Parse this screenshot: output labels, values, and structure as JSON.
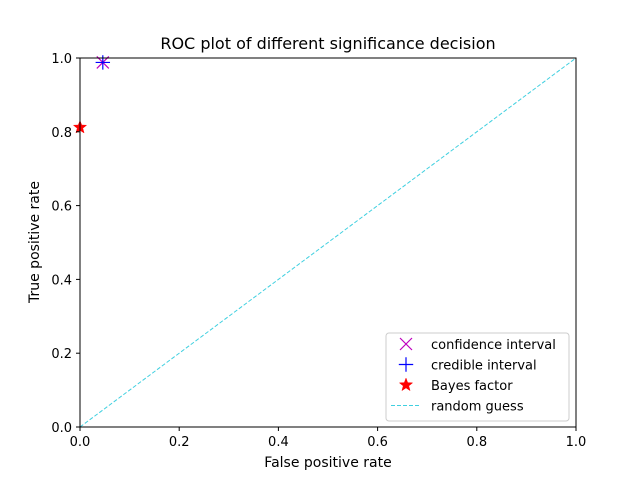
{
  "chart_data": {
    "type": "scatter",
    "title": "ROC plot of different significance decision",
    "xlabel": "False positive rate",
    "ylabel": "True positive rate",
    "xlim": [
      0,
      1
    ],
    "ylim": [
      0,
      1
    ],
    "xticks": [
      0.0,
      0.2,
      0.4,
      0.6,
      0.8,
      1.0
    ],
    "yticks": [
      0.0,
      0.2,
      0.4,
      0.6,
      0.8,
      1.0
    ],
    "xtick_labels": [
      "0.0",
      "0.2",
      "0.4",
      "0.6",
      "0.8",
      "1.0"
    ],
    "ytick_labels": [
      "0.0",
      "0.2",
      "0.4",
      "0.6",
      "0.8",
      "1.0"
    ],
    "grid": false,
    "legend_position": "lower right",
    "series": [
      {
        "name": "confidence interval",
        "marker": "x",
        "color": "#bf00bf",
        "points": [
          [
            0.046,
            0.988
          ]
        ]
      },
      {
        "name": "credible interval",
        "marker": "plus",
        "color": "#0000ff",
        "points": [
          [
            0.046,
            0.988
          ]
        ]
      },
      {
        "name": "Bayes factor",
        "marker": "star",
        "color": "#ff0000",
        "points": [
          [
            0.0,
            0.812
          ]
        ]
      },
      {
        "name": "random guess",
        "marker": "dashed-line",
        "color": "#40d0e0",
        "points": [
          [
            0,
            0
          ],
          [
            1,
            1
          ]
        ]
      }
    ]
  }
}
